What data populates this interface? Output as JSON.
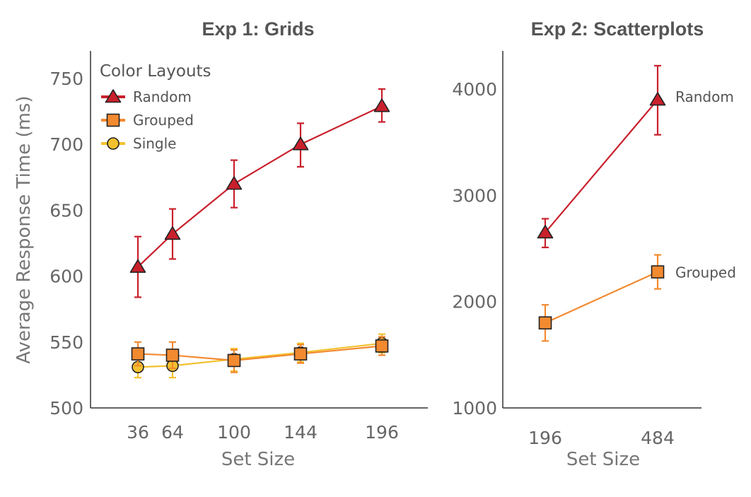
{
  "chart_data": [
    {
      "type": "line",
      "title": "Exp 1: Grids",
      "xlabel": "Set Size",
      "ylabel": "Average Response Time (ms)",
      "x": [
        36,
        64,
        100,
        144,
        196
      ],
      "xticks": [
        "36",
        "64",
        "100",
        "144",
        "196"
      ],
      "ylim": [
        500,
        770
      ],
      "yticks": [
        "500",
        "550",
        "600",
        "650",
        "700",
        "750"
      ],
      "legend": {
        "title": "Color Layouts",
        "position": "top-left"
      },
      "series": [
        {
          "name": "Random",
          "color": "#c9202c",
          "marker": "triangle",
          "values": [
            607,
            632,
            670,
            700,
            729
          ],
          "error_low": [
            584,
            613,
            652,
            683,
            717
          ],
          "error_high": [
            630,
            651,
            688,
            716,
            742
          ]
        },
        {
          "name": "Grouped",
          "color": "#f28a30",
          "marker": "square",
          "values": [
            541,
            540,
            536,
            541,
            547
          ],
          "error_low": [
            532,
            530,
            527,
            534,
            540
          ],
          "error_high": [
            550,
            550,
            544,
            548,
            554
          ]
        },
        {
          "name": "Single",
          "color": "#f2c12e",
          "marker": "circle",
          "values": [
            531,
            532,
            537,
            542,
            549
          ],
          "error_low": [
            523,
            523,
            528,
            535,
            542
          ],
          "error_high": [
            539,
            541,
            545,
            549,
            556
          ]
        }
      ]
    },
    {
      "type": "line",
      "title": "Exp 2: Scatterplots",
      "xlabel": "Set Size",
      "ylabel": "",
      "x": [
        196,
        484
      ],
      "xticks": [
        "196",
        "484"
      ],
      "ylim": [
        1000,
        4200
      ],
      "yticks": [
        "1000",
        "2000",
        "3000",
        "4000"
      ],
      "legend": {
        "title": "",
        "position": "inline-right"
      },
      "series": [
        {
          "name": "Random",
          "color": "#c9202c",
          "marker": "triangle",
          "values": [
            2650,
            3900
          ],
          "error_low": [
            2510,
            3570
          ],
          "error_high": [
            2780,
            4220
          ]
        },
        {
          "name": "Grouped",
          "color": "#f28a30",
          "marker": "square",
          "values": [
            1800,
            2280
          ],
          "error_low": [
            1630,
            2120
          ],
          "error_high": [
            1970,
            2440
          ]
        }
      ]
    }
  ]
}
